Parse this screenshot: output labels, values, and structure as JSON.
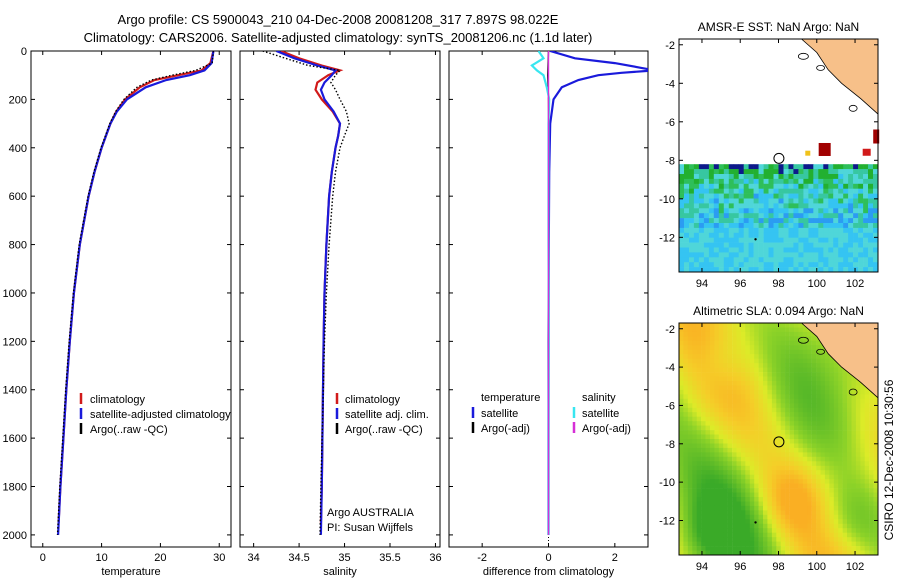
{
  "header": {
    "line1": "Argo profile: CS 5900043_210 04-Dec-2008 20081208_317 7.897S 98.022E",
    "line2": "Climatology: CARS2006. Satellite-adjusted climatology: synTS_20081206.nc (1.1d later)"
  },
  "colors": {
    "climatology": "#d11a1a",
    "satellite": "#1a1adb",
    "argo": "#000000",
    "sal_satellite": "#38e6f0",
    "sal_argo": "#d62fd6",
    "land": "#f7c089"
  },
  "credit": "CSIRO 12-Dec-2008 10:30:56",
  "chart_data": [
    {
      "type": "line",
      "id": "temperature",
      "xlabel": "temperature",
      "ylabel": "",
      "xlim": [
        -2,
        32
      ],
      "ylim": [
        2050,
        0
      ],
      "x_ticks": [
        "0",
        "10",
        "20",
        "30"
      ],
      "y_ticks": [
        "0",
        "200",
        "400",
        "600",
        "800",
        "1000",
        "1200",
        "1400",
        "1600",
        "1800",
        "2000"
      ],
      "series": [
        {
          "name": "climatology",
          "depth": [
            0,
            50,
            80,
            100,
            120,
            150,
            200,
            250,
            300,
            400,
            500,
            600,
            800,
            1000,
            1200,
            1400,
            1600,
            1800,
            1950
          ],
          "values": [
            29,
            28.5,
            27,
            23,
            19,
            16.5,
            14,
            12.5,
            11.5,
            10,
            8.8,
            7.8,
            6.3,
            5.3,
            4.6,
            4,
            3.5,
            3,
            2.7
          ]
        },
        {
          "name": "satellite-adjusted climatology",
          "depth": [
            0,
            50,
            80,
            100,
            120,
            150,
            200,
            250,
            300,
            400,
            500,
            600,
            800,
            1000,
            1200,
            1400,
            1600,
            1800,
            2000
          ],
          "values": [
            29,
            28.7,
            27.5,
            25,
            21,
            17.5,
            14.3,
            12.6,
            11.5,
            10,
            8.8,
            7.8,
            6.3,
            5.3,
            4.6,
            4,
            3.5,
            3,
            2.6
          ]
        },
        {
          "name": "Argo(..raw -QC)",
          "depth": [
            0,
            50,
            80,
            100,
            120,
            150,
            200,
            250,
            300,
            400,
            500,
            600,
            800,
            1000,
            1200,
            1400,
            1600,
            1800,
            2000
          ],
          "values": [
            29,
            28.8,
            26,
            22,
            18.5,
            16,
            13.8,
            12.4,
            11.4,
            9.9,
            8.7,
            7.7,
            6.2,
            5.2,
            4.5,
            3.9,
            3.4,
            2.9,
            2.5
          ]
        }
      ],
      "legend": [
        {
          "label": "climatology",
          "key": "climatology"
        },
        {
          "label": "satellite-adjusted climatology",
          "key": "satellite"
        },
        {
          "label": "Argo(..raw -QC)",
          "key": "argo"
        }
      ]
    },
    {
      "type": "line",
      "id": "salinity",
      "xlabel": "salinity",
      "xlim": [
        33.85,
        36.05
      ],
      "ylim": [
        2050,
        0
      ],
      "x_ticks": [
        "34",
        "34.5",
        "35",
        "35.5",
        "36"
      ],
      "series": [
        {
          "name": "climatology",
          "depth": [
            0,
            30,
            60,
            80,
            100,
            130,
            160,
            200,
            250,
            300,
            350,
            400,
            500,
            600,
            800,
            1000,
            1200,
            1500,
            1800,
            1950
          ],
          "values": [
            34.3,
            34.5,
            34.75,
            34.95,
            34.82,
            34.7,
            34.68,
            34.75,
            34.87,
            34.95,
            34.93,
            34.9,
            34.86,
            34.83,
            34.8,
            34.78,
            34.77,
            34.76,
            34.75,
            34.74
          ]
        },
        {
          "name": "satellite adj. clim.",
          "depth": [
            0,
            30,
            60,
            80,
            100,
            130,
            160,
            200,
            250,
            300,
            350,
            400,
            500,
            600,
            800,
            1000,
            1200,
            1500,
            1800,
            2000
          ],
          "values": [
            34.25,
            34.45,
            34.7,
            34.9,
            34.86,
            34.78,
            34.74,
            34.78,
            34.88,
            34.95,
            34.93,
            34.9,
            34.86,
            34.83,
            34.8,
            34.78,
            34.77,
            34.76,
            34.75,
            34.74
          ]
        },
        {
          "name": "Argo(..raw -QC)",
          "depth": [
            0,
            30,
            60,
            80,
            100,
            130,
            160,
            200,
            250,
            300,
            350,
            400,
            500,
            600,
            800,
            1000,
            1200,
            1500,
            1800,
            2000
          ],
          "values": [
            34.1,
            34.35,
            34.6,
            34.95,
            34.9,
            34.85,
            34.9,
            34.95,
            35.02,
            35.05,
            35.0,
            34.95,
            34.9,
            34.87,
            34.83,
            34.8,
            34.78,
            34.76,
            34.74,
            34.73
          ]
        }
      ],
      "legend": [
        {
          "label": "climatology",
          "key": "climatology"
        },
        {
          "label": "satellite adj. clim.",
          "key": "satellite"
        },
        {
          "label": "Argo(..raw -QC)",
          "key": "argo"
        }
      ],
      "annotations": [
        "Argo AUSTRALIA",
        "PI: Susan Wijffels"
      ]
    },
    {
      "type": "line",
      "id": "difference",
      "xlabel": "difference from climatology",
      "xlim": [
        -3,
        3
      ],
      "ylim": [
        2050,
        0
      ],
      "x_ticks": [
        "-2",
        "0",
        "2"
      ],
      "series": [
        {
          "name": "temperature satellite",
          "depth": [
            0,
            30,
            50,
            70,
            80,
            90,
            100,
            120,
            150,
            200,
            300,
            500,
            800,
            1200,
            2000
          ],
          "values": [
            0.05,
            0.8,
            2.0,
            2.8,
            3.2,
            2.2,
            1.5,
            0.9,
            0.4,
            0.15,
            0.05,
            0.02,
            0.01,
            0,
            0
          ]
        },
        {
          "name": "temperature Argo(-adj)",
          "depth": [
            0,
            100,
            200,
            500,
            1000,
            2000
          ],
          "values": [
            0,
            -0.02,
            0,
            0.01,
            0,
            -0.01
          ]
        },
        {
          "name": "salinity satellite",
          "depth": [
            0,
            30,
            60,
            80,
            100,
            150,
            200,
            300,
            500,
            800,
            1200,
            1600,
            2000
          ],
          "values": [
            -0.3,
            -0.15,
            -0.5,
            -0.35,
            -0.15,
            -0.05,
            0.02,
            0,
            0,
            0,
            0.01,
            0,
            0
          ]
        },
        {
          "name": "salinity Argo(-adj)",
          "depth": [
            0,
            500,
            1000,
            2000
          ],
          "values": [
            0,
            0,
            0,
            0
          ]
        }
      ],
      "legend_headers": [
        "temperature",
        "salinity"
      ],
      "legend": [
        {
          "label": "satellite",
          "key": "satellite"
        },
        {
          "label": "Argo(-adj)",
          "key": "argo"
        },
        {
          "label": "satellite",
          "key": "sal_satellite"
        },
        {
          "label": "Argo(-adj)",
          "key": "sal_argo"
        }
      ]
    },
    {
      "type": "heatmap",
      "id": "sst_map",
      "title": "AMSR-E SST: NaN Argo: NaN",
      "xlim": [
        92.8,
        103.2
      ],
      "ylim": [
        -13.8,
        -1.7
      ],
      "x_ticks": [
        "94",
        "96",
        "98",
        "100",
        "102"
      ],
      "y_ticks": [
        "-2",
        "-4",
        "-6",
        "-8",
        "-10",
        "-12"
      ],
      "argo_position": {
        "lon": 98.022,
        "lat": -7.897
      }
    },
    {
      "type": "heatmap",
      "id": "sla_map",
      "title": "Altimetric SLA: 0.094 Argo: NaN",
      "xlim": [
        92.8,
        103.2
      ],
      "ylim": [
        -13.8,
        -1.7
      ],
      "x_ticks": [
        "94",
        "96",
        "98",
        "100",
        "102"
      ],
      "y_ticks": [
        "-2",
        "-4",
        "-6",
        "-8",
        "-10",
        "-12"
      ],
      "argo_position": {
        "lon": 98.022,
        "lat": -7.897
      }
    }
  ]
}
